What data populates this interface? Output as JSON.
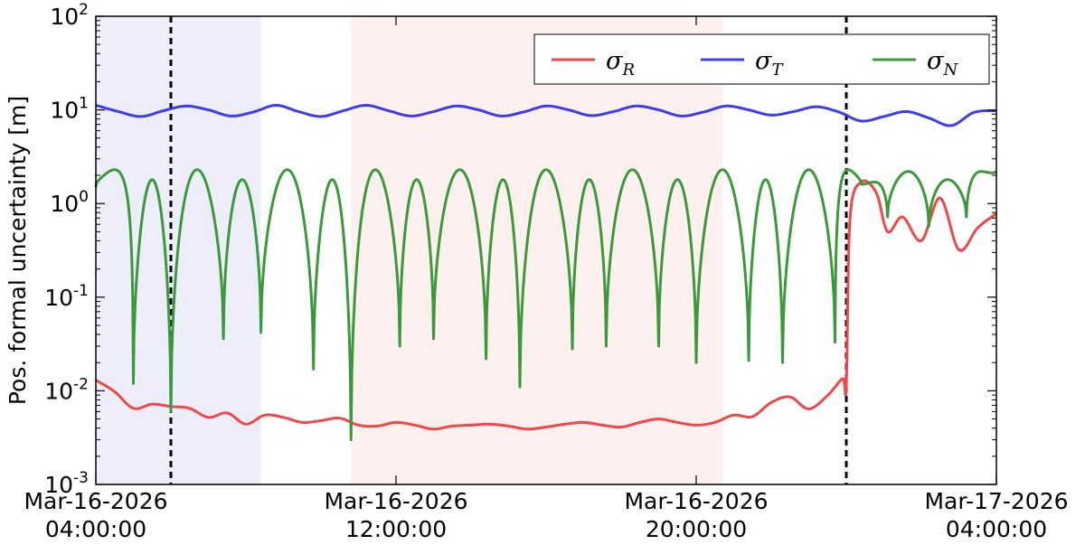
{
  "chart_data": {
    "type": "line",
    "title": "",
    "ylabel": "Pos. formal uncertainty [m]",
    "xlabel": "",
    "yscale": "log",
    "ylim": [
      0.001,
      100
    ],
    "x_ticks": [
      {
        "line1": "Mar-16-2026",
        "line2": "04:00:00",
        "hours": 0
      },
      {
        "line1": "Mar-16-2026",
        "line2": "12:00:00",
        "hours": 8
      },
      {
        "line1": "Mar-16-2026",
        "line2": "20:00:00",
        "hours": 16
      },
      {
        "line1": "Mar-17-2026",
        "line2": "04:00:00",
        "hours": 24
      }
    ],
    "y_ticks": [
      {
        "base": "10",
        "exp": "-3",
        "value": 0.001
      },
      {
        "base": "10",
        "exp": "-2",
        "value": 0.01
      },
      {
        "base": "10",
        "exp": "-1",
        "value": 0.1
      },
      {
        "base": "10",
        "exp": "0",
        "value": 1
      },
      {
        "base": "10",
        "exp": "1",
        "value": 10
      },
      {
        "base": "10",
        "exp": "2",
        "value": 100
      }
    ],
    "x_range_hours": [
      0,
      24
    ],
    "grid": false,
    "legend_position": "top-right",
    "shaded_regions": [
      {
        "start_hours": 0,
        "end_hours": 4.4,
        "color": "#eeeefb"
      },
      {
        "start_hours": 6.8,
        "end_hours": 16.7,
        "color": "#fdf0ef"
      }
    ],
    "vertical_lines_hours": [
      2,
      20
    ],
    "series": [
      {
        "name": "σR",
        "legend_main": "σ",
        "legend_sub": "R",
        "color": "#f04848",
        "points": [
          [
            0.0,
            0.013
          ],
          [
            0.5,
            0.0098
          ],
          [
            1.0,
            0.0065
          ],
          [
            1.5,
            0.0072
          ],
          [
            2.0,
            0.0068
          ],
          [
            2.5,
            0.0065
          ],
          [
            3.0,
            0.0052
          ],
          [
            3.5,
            0.0058
          ],
          [
            4.0,
            0.0044
          ],
          [
            4.5,
            0.0055
          ],
          [
            5.0,
            0.0052
          ],
          [
            5.5,
            0.0046
          ],
          [
            6.0,
            0.0048
          ],
          [
            6.5,
            0.0051
          ],
          [
            7.0,
            0.0043
          ],
          [
            7.5,
            0.0042
          ],
          [
            8.0,
            0.0046
          ],
          [
            8.5,
            0.0043
          ],
          [
            9.0,
            0.0039
          ],
          [
            9.5,
            0.0042
          ],
          [
            10.0,
            0.0043
          ],
          [
            10.5,
            0.0044
          ],
          [
            11.0,
            0.0042
          ],
          [
            11.5,
            0.0039
          ],
          [
            12.0,
            0.0041
          ],
          [
            12.5,
            0.0044
          ],
          [
            13.0,
            0.0046
          ],
          [
            13.5,
            0.0043
          ],
          [
            14.0,
            0.0041
          ],
          [
            14.5,
            0.0046
          ],
          [
            15.0,
            0.005
          ],
          [
            15.5,
            0.0046
          ],
          [
            16.0,
            0.0043
          ],
          [
            16.5,
            0.0046
          ],
          [
            17.0,
            0.0055
          ],
          [
            17.5,
            0.0053
          ],
          [
            18.0,
            0.0075
          ],
          [
            18.5,
            0.0086
          ],
          [
            19.0,
            0.0064
          ],
          [
            19.5,
            0.0089
          ],
          [
            19.9,
            0.0135
          ],
          [
            20.0,
            0.0115
          ],
          [
            20.1,
            0.7
          ],
          [
            20.4,
            1.7
          ],
          [
            20.8,
            1.3
          ],
          [
            21.1,
            0.5
          ],
          [
            21.5,
            0.72
          ],
          [
            22.0,
            0.4
          ],
          [
            22.5,
            1.15
          ],
          [
            23.0,
            0.32
          ],
          [
            23.5,
            0.55
          ],
          [
            24.0,
            0.78
          ]
        ]
      },
      {
        "name": "σT",
        "legend_main": "σ",
        "legend_sub": "T",
        "color": "#3c3cf0",
        "points": [
          [
            0.0,
            11.2
          ],
          [
            0.6,
            9.6
          ],
          [
            1.2,
            8.5
          ],
          [
            1.8,
            9.8
          ],
          [
            2.4,
            11.0
          ],
          [
            3.0,
            10.0
          ],
          [
            3.6,
            8.6
          ],
          [
            4.2,
            9.5
          ],
          [
            4.8,
            11.2
          ],
          [
            5.4,
            9.6
          ],
          [
            6.0,
            8.5
          ],
          [
            6.6,
            9.8
          ],
          [
            7.2,
            11.2
          ],
          [
            7.8,
            9.8
          ],
          [
            8.4,
            8.6
          ],
          [
            9.0,
            9.6
          ],
          [
            9.6,
            11.0
          ],
          [
            10.2,
            10.0
          ],
          [
            10.8,
            8.6
          ],
          [
            11.4,
            9.5
          ],
          [
            12.0,
            11.0
          ],
          [
            12.6,
            10.0
          ],
          [
            13.2,
            8.7
          ],
          [
            13.8,
            9.6
          ],
          [
            14.4,
            11.0
          ],
          [
            15.0,
            10.0
          ],
          [
            15.6,
            8.6
          ],
          [
            16.2,
            9.5
          ],
          [
            16.8,
            11.0
          ],
          [
            17.4,
            10.0
          ],
          [
            18.0,
            8.8
          ],
          [
            18.6,
            9.6
          ],
          [
            19.2,
            10.8
          ],
          [
            19.8,
            9.5
          ],
          [
            20.4,
            7.6
          ],
          [
            21.0,
            8.5
          ],
          [
            21.6,
            9.6
          ],
          [
            22.2,
            8.2
          ],
          [
            22.8,
            6.8
          ],
          [
            23.4,
            9.4
          ],
          [
            24.0,
            9.8
          ]
        ]
      },
      {
        "name": "σN",
        "legend_main": "σ",
        "legend_sub": "N",
        "color": "#3a9a3a",
        "arches": [
          {
            "start": 0.0,
            "end": 1.0,
            "peak": 2.3,
            "start_min": 1.5,
            "end_min": 0.012
          },
          {
            "start": 1.0,
            "end": 2.0,
            "peak": 1.8,
            "start_min": 0.012,
            "end_min": 0.006
          },
          {
            "start": 2.0,
            "end": 3.4,
            "peak": 2.3,
            "start_min": 0.006,
            "end_min": 0.036
          },
          {
            "start": 3.4,
            "end": 4.4,
            "peak": 1.8,
            "start_min": 0.036,
            "end_min": 0.042
          },
          {
            "start": 4.4,
            "end": 5.8,
            "peak": 2.3,
            "start_min": 0.042,
            "end_min": 0.017
          },
          {
            "start": 5.8,
            "end": 6.8,
            "peak": 1.8,
            "start_min": 0.017,
            "end_min": 0.003
          },
          {
            "start": 6.8,
            "end": 8.1,
            "peak": 2.3,
            "start_min": 0.003,
            "end_min": 0.03
          },
          {
            "start": 8.1,
            "end": 9.0,
            "peak": 1.8,
            "start_min": 0.03,
            "end_min": 0.036
          },
          {
            "start": 9.0,
            "end": 10.4,
            "peak": 2.3,
            "start_min": 0.036,
            "end_min": 0.022
          },
          {
            "start": 10.4,
            "end": 11.3,
            "peak": 1.8,
            "start_min": 0.022,
            "end_min": 0.011
          },
          {
            "start": 11.3,
            "end": 12.7,
            "peak": 2.3,
            "start_min": 0.011,
            "end_min": 0.028
          },
          {
            "start": 12.7,
            "end": 13.6,
            "peak": 1.8,
            "start_min": 0.028,
            "end_min": 0.03
          },
          {
            "start": 13.6,
            "end": 15.0,
            "peak": 2.3,
            "start_min": 0.03,
            "end_min": 0.03
          },
          {
            "start": 15.0,
            "end": 16.0,
            "peak": 1.8,
            "start_min": 0.03,
            "end_min": 0.02
          },
          {
            "start": 16.0,
            "end": 17.4,
            "peak": 2.3,
            "start_min": 0.02,
            "end_min": 0.021
          },
          {
            "start": 17.4,
            "end": 18.3,
            "peak": 1.8,
            "start_min": 0.021,
            "end_min": 0.02
          },
          {
            "start": 18.3,
            "end": 19.7,
            "peak": 2.3,
            "start_min": 0.02,
            "end_min": 0.033
          },
          {
            "start": 19.7,
            "end": 20.4,
            "peak": 2.3,
            "start_min": 0.033,
            "end_min": 1.6
          },
          {
            "start": 20.4,
            "end": 21.1,
            "peak": 1.7,
            "start_min": 1.6,
            "end_min": 0.72
          },
          {
            "start": 21.1,
            "end": 22.2,
            "peak": 2.2,
            "start_min": 0.72,
            "end_min": 0.57
          },
          {
            "start": 22.2,
            "end": 23.2,
            "peak": 1.8,
            "start_min": 0.57,
            "end_min": 0.72
          },
          {
            "start": 23.2,
            "end": 24.0,
            "peak": 2.2,
            "start_min": 0.72,
            "end_min": 2.2
          }
        ]
      }
    ]
  }
}
